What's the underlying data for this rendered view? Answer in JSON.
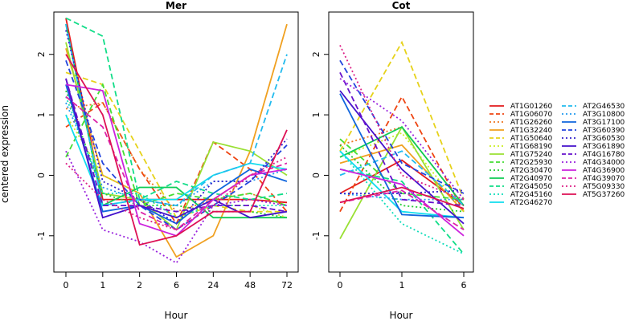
{
  "chart_data": {
    "type": "line",
    "ylabel": "centered expression",
    "xlabel": "Hour",
    "ylim": [
      -1.6,
      2.7
    ],
    "yticks": [
      "-1",
      "0",
      "1",
      "2"
    ],
    "grid": false,
    "legend_position": "right",
    "genes": [
      {
        "name": "AT1G01260",
        "color": "#e31a1c",
        "dash": "solid"
      },
      {
        "name": "AT1G06070",
        "color": "#ee4411",
        "dash": "dashed"
      },
      {
        "name": "AT1G26260",
        "color": "#ee7722",
        "dash": "dotted"
      },
      {
        "name": "AT1G32240",
        "color": "#f0a020",
        "dash": "solid"
      },
      {
        "name": "AT1G50640",
        "color": "#e6d21a",
        "dash": "dashed"
      },
      {
        "name": "AT1G68190",
        "color": "#ccee22",
        "dash": "dotted"
      },
      {
        "name": "AT1G75240",
        "color": "#99e033",
        "dash": "solid"
      },
      {
        "name": "AT2G25930",
        "color": "#44dd33",
        "dash": "dashed"
      },
      {
        "name": "AT2G30470",
        "color": "#22cc33",
        "dash": "dotted"
      },
      {
        "name": "AT2G40970",
        "color": "#11cc55",
        "dash": "solid"
      },
      {
        "name": "AT2G45050",
        "color": "#11dd88",
        "dash": "dashed"
      },
      {
        "name": "AT2G45160",
        "color": "#11ddbb",
        "dash": "dotted"
      },
      {
        "name": "AT2G46270",
        "color": "#11ddee",
        "dash": "solid"
      },
      {
        "name": "AT2G46530",
        "color": "#22bbee",
        "dash": "dashed"
      },
      {
        "name": "AT3G10800",
        "color": "#2299ee",
        "dash": "dotted"
      },
      {
        "name": "AT3G17100",
        "color": "#1166dd",
        "dash": "solid"
      },
      {
        "name": "AT3G60390",
        "color": "#2244dd",
        "dash": "dashed"
      },
      {
        "name": "AT3G60530",
        "color": "#3322cc",
        "dash": "dotted"
      },
      {
        "name": "AT3G61890",
        "color": "#4411cc",
        "dash": "solid"
      },
      {
        "name": "AT4G16780",
        "color": "#6611cc",
        "dash": "dashed"
      },
      {
        "name": "AT4G34000",
        "color": "#9922dd",
        "dash": "dotted"
      },
      {
        "name": "AT4G36900",
        "color": "#cc22dd",
        "dash": "solid"
      },
      {
        "name": "AT4G39070",
        "color": "#dd22aa",
        "dash": "dashed"
      },
      {
        "name": "AT5G09330",
        "color": "#dd2288",
        "dash": "dotted"
      },
      {
        "name": "AT5G37260",
        "color": "#dd1155",
        "dash": "solid"
      }
    ],
    "panels": [
      {
        "title": "Mer",
        "x": [
          "0",
          "1",
          "2",
          "6",
          "24",
          "48",
          "72"
        ],
        "series": [
          [
            2.6,
            -0.4,
            -0.4,
            -0.4,
            -0.4,
            -0.4,
            -0.45
          ],
          [
            0.8,
            1.2,
            0.1,
            -0.8,
            0.55,
            0.1,
            -0.6
          ],
          [
            1.1,
            1.2,
            0.1,
            -0.6,
            -0.4,
            -0.3,
            -0.5
          ],
          [
            2.1,
            0.0,
            -0.3,
            -1.35,
            -1.0,
            0.4,
            2.5
          ],
          [
            1.7,
            1.5,
            0.4,
            -0.7,
            -0.5,
            -0.6,
            -0.6
          ],
          [
            1.0,
            0.0,
            -0.3,
            -0.7,
            -0.5,
            -0.5,
            -0.7
          ],
          [
            2.2,
            -0.3,
            -0.4,
            -0.9,
            0.55,
            0.4,
            0.0
          ],
          [
            0.3,
            1.5,
            -0.5,
            -0.3,
            -0.4,
            -0.3,
            -0.5
          ],
          [
            1.4,
            -0.3,
            -0.5,
            -0.5,
            -0.6,
            -0.6,
            -0.7
          ],
          [
            2.5,
            -0.5,
            -0.2,
            -0.2,
            -0.7,
            -0.7,
            -0.7
          ],
          [
            2.6,
            2.3,
            -0.4,
            -0.1,
            -0.3,
            -0.4,
            -0.3
          ],
          [
            1.3,
            -0.3,
            -0.3,
            -0.7,
            -0.5,
            -0.5,
            -0.5
          ],
          [
            1.0,
            -0.5,
            -0.4,
            -0.4,
            0.0,
            0.2,
            0.1
          ],
          [
            2.5,
            -0.5,
            -0.4,
            -0.5,
            0.0,
            0.2,
            2.0
          ],
          [
            1.2,
            -0.2,
            -0.4,
            -0.5,
            -0.1,
            -0.1,
            0.1
          ],
          [
            1.5,
            -0.6,
            -0.5,
            -0.8,
            -0.3,
            0.1,
            -0.1
          ],
          [
            1.9,
            0.2,
            -0.5,
            -0.9,
            -0.5,
            -0.1,
            0.5
          ],
          [
            2.4,
            -0.1,
            -0.4,
            -0.8,
            -0.1,
            -0.1,
            0.6
          ],
          [
            1.6,
            -0.7,
            -0.5,
            -0.7,
            -0.4,
            -0.7,
            -0.6
          ],
          [
            1.6,
            -0.5,
            -0.5,
            -0.6,
            -0.5,
            -0.5,
            -0.6
          ],
          [
            0.4,
            -0.9,
            -1.1,
            -1.45,
            -0.5,
            -0.4,
            -0.5
          ],
          [
            1.5,
            1.4,
            -0.8,
            -1.0,
            -0.4,
            0.0,
            0.1
          ],
          [
            1.3,
            0.8,
            -0.6,
            -0.9,
            -0.4,
            0.0,
            0.2
          ],
          [
            0.2,
            -0.4,
            -0.7,
            -0.9,
            -0.5,
            0.0,
            0.3
          ],
          [
            2.0,
            1.0,
            -1.15,
            -1.0,
            -0.6,
            -0.6,
            0.75
          ]
        ]
      },
      {
        "title": "Cot",
        "x": [
          "0",
          "1",
          "6"
        ],
        "series": [
          [
            -0.3,
            0.25,
            -0.5
          ],
          [
            -0.6,
            1.3,
            -0.6
          ],
          [
            0.5,
            0.8,
            -0.5
          ],
          [
            0.2,
            0.5,
            -0.6
          ],
          [
            0.4,
            2.2,
            -0.4
          ],
          [
            0.3,
            0.7,
            -0.6
          ],
          [
            -1.05,
            0.8,
            -0.9
          ],
          [
            0.6,
            -0.3,
            -0.4
          ],
          [
            0.5,
            -0.5,
            -0.6
          ],
          [
            0.3,
            0.8,
            -0.5
          ],
          [
            0.1,
            -0.1,
            -1.3
          ],
          [
            0.4,
            -0.8,
            -1.3
          ],
          [
            0.4,
            -0.6,
            -0.7
          ],
          [
            0.0,
            0.4,
            -0.5
          ],
          [
            -0.3,
            -0.4,
            -0.4
          ],
          [
            1.35,
            -0.65,
            -0.7
          ],
          [
            1.9,
            0.2,
            -0.3
          ],
          [
            -0.3,
            -0.3,
            -0.25
          ],
          [
            1.4,
            0.1,
            -0.8
          ],
          [
            1.7,
            -0.4,
            -0.5
          ],
          [
            1.6,
            0.9,
            -0.4
          ],
          [
            0.1,
            -0.15,
            -1.0
          ],
          [
            -0.45,
            -0.25,
            -0.9
          ],
          [
            2.15,
            0.0,
            -0.4
          ],
          [
            -0.45,
            -0.2,
            -0.55
          ]
        ]
      }
    ]
  }
}
